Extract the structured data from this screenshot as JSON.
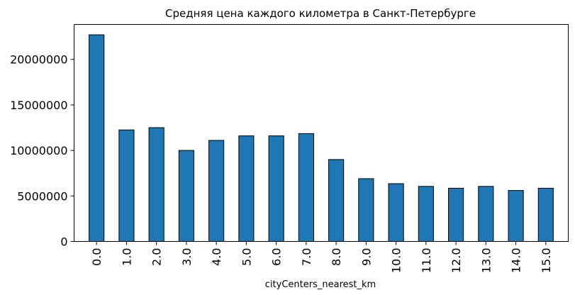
{
  "chart_data": {
    "type": "bar",
    "title": "Средняя цена каждого километра в Санкт-Петербурге",
    "xlabel": "cityCenters_nearest_km",
    "ylabel": "",
    "categories": [
      "0.0",
      "1.0",
      "2.0",
      "3.0",
      "4.0",
      "5.0",
      "6.0",
      "7.0",
      "8.0",
      "9.0",
      "10.0",
      "11.0",
      "12.0",
      "13.0",
      "14.0",
      "15.0"
    ],
    "values": [
      22700000,
      12250000,
      12500000,
      10000000,
      11100000,
      11600000,
      11600000,
      11850000,
      9000000,
      6900000,
      6350000,
      6050000,
      5850000,
      6050000,
      5600000,
      5850000
    ],
    "yticks": [
      0,
      5000000,
      10000000,
      15000000,
      20000000
    ],
    "ytick_labels": [
      "0",
      "5000000",
      "10000000",
      "15000000",
      "20000000"
    ],
    "ylim": [
      0,
      23835000
    ],
    "grid": false,
    "legend": "none",
    "bar_color": "#1f77b4",
    "edge_color": "#000000"
  }
}
